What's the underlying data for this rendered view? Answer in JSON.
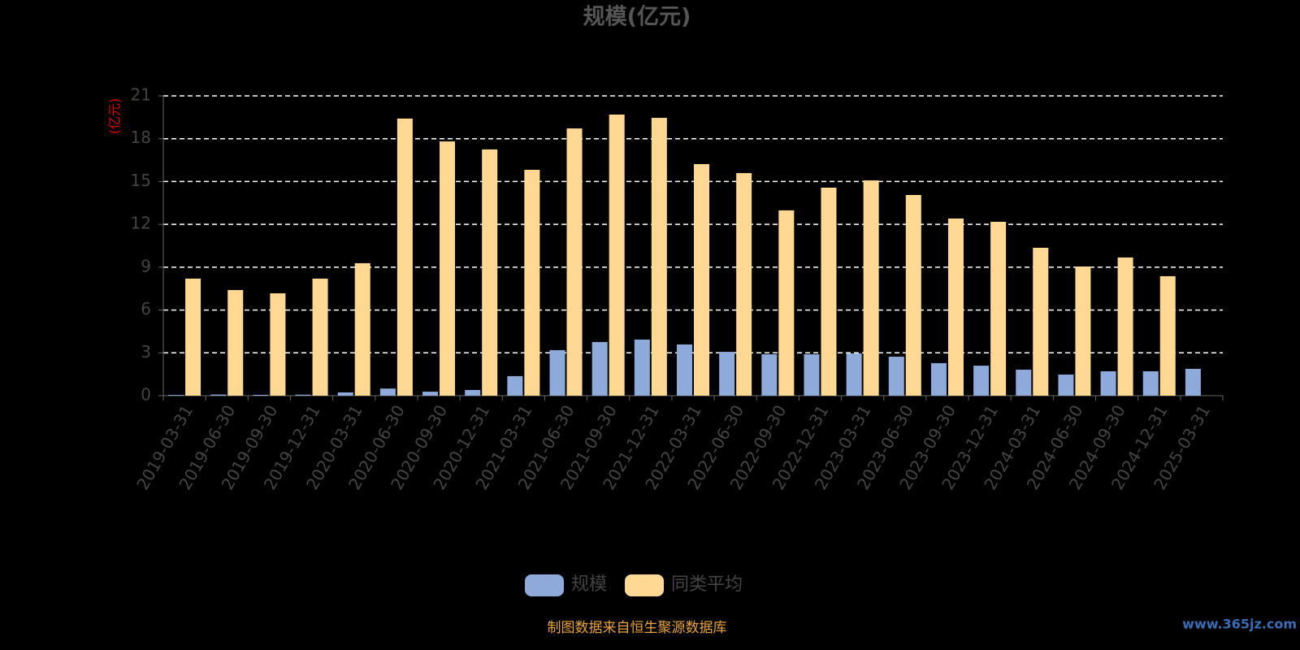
{
  "chart_data": {
    "type": "bar",
    "title": "规模(亿元)",
    "y_axis_label": "(亿元)",
    "categories": [
      "2019-03-31",
      "2019-06-30",
      "2019-09-30",
      "2019-12-31",
      "2020-03-31",
      "2020-06-30",
      "2020-09-30",
      "2020-12-31",
      "2021-03-31",
      "2021-06-30",
      "2021-09-30",
      "2021-12-31",
      "2022-03-31",
      "2022-06-30",
      "2022-09-30",
      "2022-12-31",
      "2023-03-31",
      "2023-06-30",
      "2023-09-30",
      "2023-12-31",
      "2024-03-31",
      "2024-06-30",
      "2024-09-30",
      "2024-12-31",
      "2025-03-31"
    ],
    "series": [
      {
        "name": "规模",
        "color": "#8eaadb",
        "values": [
          0.05,
          0.08,
          0.06,
          0.07,
          0.23,
          0.5,
          0.28,
          0.4,
          1.37,
          3.19,
          3.76,
          3.93,
          3.59,
          3.07,
          2.9,
          2.9,
          2.96,
          2.73,
          2.28,
          2.1,
          1.82,
          1.48,
          1.71,
          1.71,
          1.88
        ]
      },
      {
        "name": "同类平均",
        "color": "#ffd993",
        "values": [
          8.2,
          7.4,
          7.17,
          8.2,
          9.28,
          19.41,
          17.81,
          17.25,
          15.82,
          18.72,
          19.69,
          19.46,
          16.22,
          15.59,
          12.98,
          14.57,
          15.08,
          14.06,
          12.41,
          12.18,
          10.36,
          9.05,
          9.68,
          8.37,
          null
        ]
      }
    ],
    "ylim": [
      0,
      21
    ],
    "yticks": [
      0,
      3,
      6,
      9,
      12,
      15,
      18,
      21
    ],
    "grid": true,
    "legend": "bottom",
    "source_note": "制图数据来自恒生聚源数据库",
    "watermark": "www.365jz.com"
  }
}
